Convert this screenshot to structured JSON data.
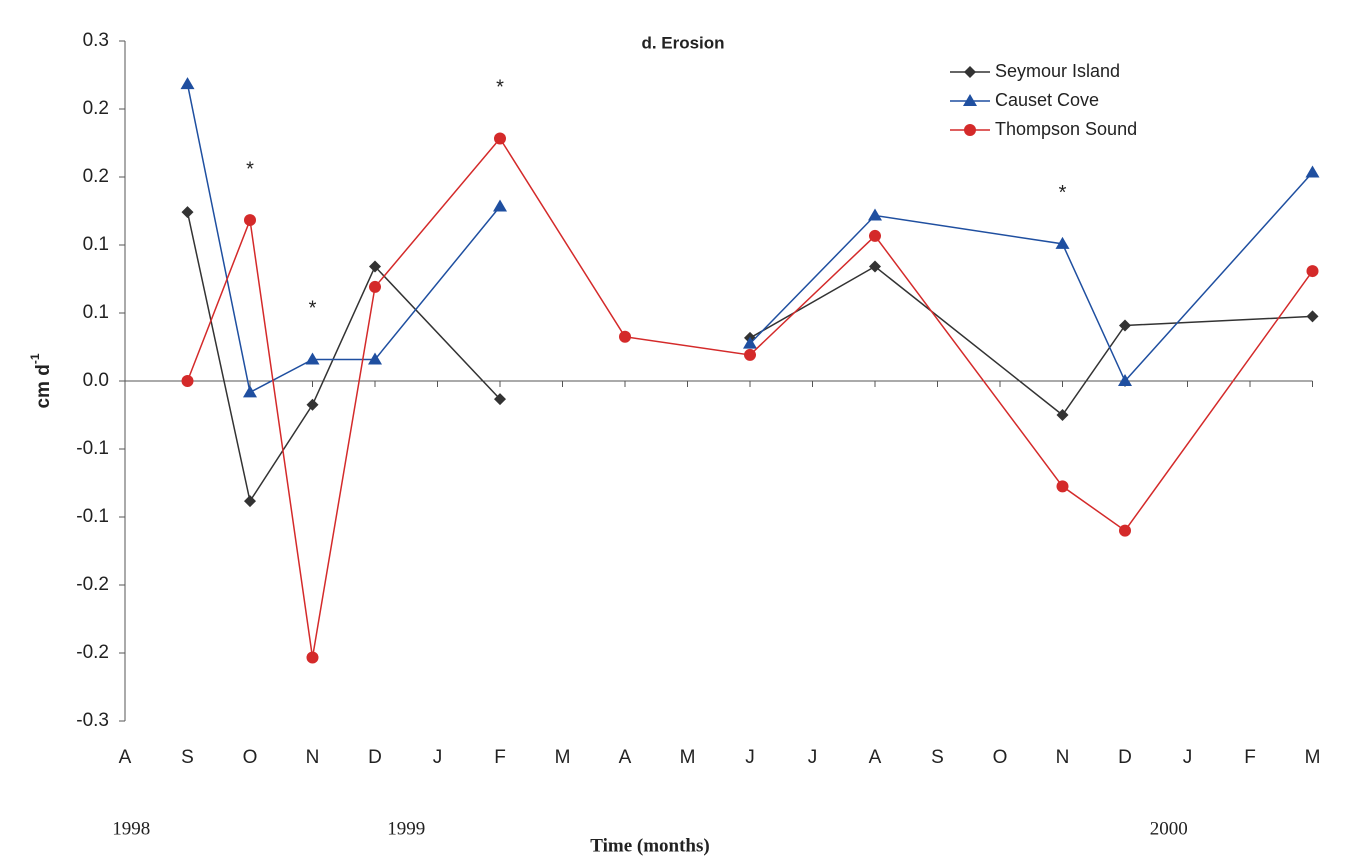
{
  "chart_data": {
    "type": "line",
    "title": "d. Erosion",
    "ylabel": {
      "text": "cm d",
      "superscript": "-1"
    },
    "xlabel": "Time (months)",
    "categories": [
      "A",
      "S",
      "O",
      "N",
      "D",
      "J",
      "F",
      "M",
      "A",
      "M",
      "J",
      "J",
      "A",
      "S",
      "O",
      "N",
      "D",
      "J",
      "F",
      "M"
    ],
    "years": [
      "1998",
      "1999",
      "2000"
    ],
    "ylim": [
      -0.3,
      0.3
    ],
    "yticks": [
      0.3,
      {
        "value": 0.24,
        "label": "0.2"
      },
      {
        "value": 0.18,
        "label": "0.2"
      },
      {
        "value": 0.12,
        "label": "0.1"
      },
      {
        "value": 0.06,
        "label": "0.1"
      },
      {
        "value": 0,
        "label": "0.0"
      },
      {
        "value": -0.06,
        "label": "-0.1"
      },
      {
        "value": -0.12,
        "label": "-0.1"
      },
      {
        "value": -0.18,
        "label": "-0.2"
      },
      {
        "value": -0.24,
        "label": "-0.2"
      },
      -0.3
    ],
    "series": [
      {
        "name": "Seymour Island",
        "color": "#333333",
        "marker": "diamond",
        "x": [
          1,
          2,
          3,
          4,
          6,
          8,
          10,
          12,
          15,
          16,
          19
        ],
        "values": [
          0.149,
          -0.106,
          -0.021,
          0.101,
          -0.016,
          null,
          0.038,
          0.101,
          -0.03,
          0.049,
          0.057
        ]
      },
      {
        "name": "Causet Cove",
        "color": "#1f4fa0",
        "marker": "triangle",
        "x": [
          1,
          2,
          3,
          4,
          6,
          8,
          10,
          12,
          15,
          16,
          19
        ],
        "values": [
          0.262,
          -0.01,
          0.019,
          0.019,
          0.154,
          null,
          0.033,
          0.146,
          0.121,
          0,
          0.184
        ]
      },
      {
        "name": "Thompson Sound",
        "color": "#d42a2a",
        "marker": "circle",
        "x": [
          1,
          2,
          3,
          4,
          6,
          8,
          10,
          12,
          15,
          16,
          19
        ],
        "values": [
          0,
          0.142,
          -0.244,
          0.083,
          0.214,
          0.039,
          0.023,
          0.128,
          -0.093,
          -0.132,
          0.097
        ]
      }
    ],
    "annotations": [
      {
        "text": "*",
        "x": 2
      },
      {
        "text": "*",
        "x": 3
      },
      {
        "text": "*",
        "x": 6
      },
      {
        "text": "*",
        "x": 15
      }
    ],
    "legend": "top-right"
  }
}
